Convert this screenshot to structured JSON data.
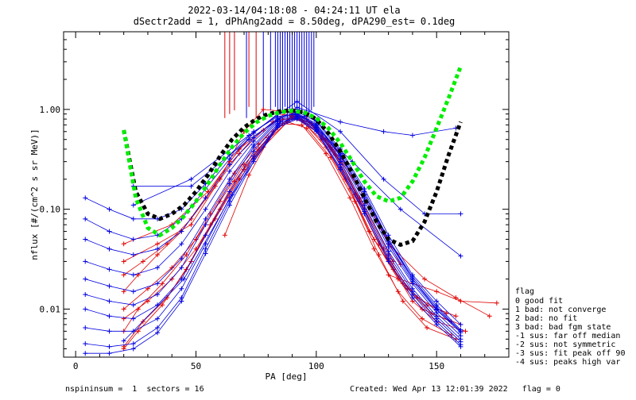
{
  "title_line1": "2022-03-14/04:18:08 - 04:24:11 UT ela",
  "title_line2": "dSectr2add = 1, dPhAng2add = 8.50deg, dPA290_est=   0.1deg",
  "footer_left": "nspininsum =  1  sectors = 16",
  "footer_right": "Created: Wed Apr 13 12:01:39 2022   flag = 0",
  "legend": {
    "title": "flag",
    "items": [
      " 0 good fit",
      " 1 bad: not converge",
      " 2 bad: no fit",
      " 3 bad: bad fgm state",
      "-1 sus: far off median",
      "-2 sus: not symmetric",
      "-3 sus: fit peak off 90",
      "-4 sus: peaks high var"
    ]
  },
  "colors": {
    "red_series": "#e00000",
    "blue_series": "#0000e0",
    "black_fit": "#000000",
    "green_fit": "#00ee00"
  },
  "chart_data": {
    "type": "line",
    "xlabel": "PA [deg]",
    "ylabel": "nflux [#/(cm^2 s sr MeV)]",
    "xlim": [
      -5,
      180
    ],
    "ylim": [
      0.0033,
      6.0
    ],
    "yscale": "log",
    "x_ticks": [
      0,
      50,
      100,
      150
    ],
    "y_ticks": [
      0.01,
      0.1,
      1.0
    ],
    "y_tick_labels": [
      "0.01",
      "0.10",
      "1.00"
    ],
    "grid": false,
    "series": [
      {
        "color": "red",
        "x": [
          20,
          28,
          38,
          48,
          58,
          68,
          78,
          88,
          96,
          106,
          116,
          126,
          136,
          146,
          158
        ],
        "y": [
          0.0042,
          0.0075,
          0.013,
          0.03,
          0.08,
          0.2,
          0.42,
          0.75,
          0.65,
          0.33,
          0.12,
          0.035,
          0.012,
          0.0065,
          0.005
        ]
      },
      {
        "color": "red",
        "x": [
          20,
          26,
          36,
          46,
          56,
          66,
          76,
          86,
          94,
          104,
          114,
          124,
          134,
          144,
          156
        ],
        "y": [
          0.006,
          0.01,
          0.018,
          0.035,
          0.09,
          0.23,
          0.45,
          0.8,
          0.78,
          0.42,
          0.16,
          0.05,
          0.02,
          0.01,
          0.0075
        ]
      },
      {
        "color": "red",
        "x": [
          20,
          30,
          40,
          50,
          60,
          70,
          80,
          90,
          98,
          108,
          118,
          128,
          138,
          148,
          160
        ],
        "y": [
          0.01,
          0.016,
          0.026,
          0.05,
          0.12,
          0.28,
          0.52,
          0.88,
          0.72,
          0.35,
          0.12,
          0.04,
          0.016,
          0.009,
          0.007
        ]
      },
      {
        "color": "red",
        "x": [
          20,
          26,
          34,
          44,
          54,
          64,
          74,
          84,
          92,
          102,
          112,
          122,
          132,
          142,
          154
        ],
        "y": [
          0.015,
          0.022,
          0.035,
          0.06,
          0.13,
          0.3,
          0.58,
          0.9,
          0.85,
          0.5,
          0.2,
          0.06,
          0.025,
          0.013,
          0.009
        ]
      },
      {
        "color": "red",
        "x": [
          20,
          28,
          38,
          48,
          58,
          68,
          78,
          88,
          96,
          106,
          116,
          126,
          136,
          146,
          158
        ],
        "y": [
          0.022,
          0.03,
          0.045,
          0.08,
          0.17,
          0.36,
          0.62,
          0.95,
          0.8,
          0.42,
          0.14,
          0.045,
          0.018,
          0.011,
          0.0085
        ]
      },
      {
        "color": "red",
        "x": [
          20,
          30,
          40,
          50,
          60,
          70,
          80,
          90,
          100,
          110,
          120,
          130,
          140,
          150,
          162
        ],
        "y": [
          0.008,
          0.012,
          0.02,
          0.04,
          0.1,
          0.25,
          0.5,
          0.82,
          0.66,
          0.3,
          0.1,
          0.03,
          0.012,
          0.0075,
          0.006
        ]
      },
      {
        "color": "red",
        "x": [
          20,
          26,
          36,
          46,
          56,
          66,
          76,
          86,
          94,
          104,
          114,
          124,
          134,
          144,
          156
        ],
        "y": [
          0.004,
          0.006,
          0.011,
          0.025,
          0.07,
          0.19,
          0.4,
          0.72,
          0.7,
          0.36,
          0.13,
          0.04,
          0.015,
          0.008,
          0.0055
        ]
      },
      {
        "color": "red",
        "x": [
          20,
          34,
          48,
          60,
          70,
          78,
          88,
          96,
          106,
          118,
          132
        ],
        "y": [
          0.03,
          0.045,
          0.07,
          0.2,
          0.6,
          1.0,
          0.95,
          0.8,
          0.4,
          0.13,
          0.03
        ]
      },
      {
        "color": "red",
        "x": [
          20,
          40,
          55,
          68,
          82,
          92,
          104,
          118,
          135
        ],
        "y": [
          0.045,
          0.07,
          0.15,
          0.4,
          0.75,
          0.85,
          0.5,
          0.16,
          0.028
        ]
      },
      {
        "color": "red",
        "x": [
          62,
          72,
          82,
          90,
          98,
          108,
          118,
          130,
          145,
          158,
          172
        ],
        "y": [
          0.055,
          0.22,
          0.6,
          0.85,
          0.72,
          0.4,
          0.16,
          0.045,
          0.02,
          0.013,
          0.0085
        ]
      },
      {
        "color": "red",
        "x": [
          130,
          140,
          150,
          160,
          175
        ],
        "y": [
          0.022,
          0.018,
          0.015,
          0.012,
          0.0115
        ]
      },
      {
        "color": "blue",
        "x": [
          4,
          14,
          24,
          34,
          44,
          54,
          64,
          74,
          84,
          92,
          100,
          110,
          120,
          130,
          140,
          150,
          160
        ],
        "y": [
          0.13,
          0.1,
          0.08,
          0.08,
          0.1,
          0.18,
          0.35,
          0.6,
          0.85,
          0.9,
          0.7,
          0.35,
          0.14,
          0.05,
          0.02,
          0.01,
          0.006
        ]
      },
      {
        "color": "blue",
        "x": [
          4,
          14,
          24,
          34,
          44,
          54,
          64,
          74,
          84,
          92,
          100,
          110,
          120,
          130,
          140,
          150,
          160
        ],
        "y": [
          0.08,
          0.06,
          0.05,
          0.055,
          0.08,
          0.16,
          0.32,
          0.58,
          0.9,
          1.0,
          0.78,
          0.4,
          0.16,
          0.055,
          0.022,
          0.012,
          0.007
        ]
      },
      {
        "color": "blue",
        "x": [
          4,
          14,
          24,
          34,
          44,
          54,
          64,
          74,
          84,
          92,
          100,
          110,
          120,
          130,
          140,
          150,
          160
        ],
        "y": [
          0.05,
          0.04,
          0.035,
          0.04,
          0.06,
          0.13,
          0.28,
          0.52,
          0.82,
          0.92,
          0.72,
          0.36,
          0.14,
          0.048,
          0.02,
          0.0105,
          0.006
        ]
      },
      {
        "color": "blue",
        "x": [
          4,
          14,
          24,
          34,
          44,
          54,
          64,
          74,
          84,
          92,
          100,
          110,
          120,
          130,
          140,
          150,
          160
        ],
        "y": [
          0.03,
          0.025,
          0.022,
          0.026,
          0.045,
          0.1,
          0.24,
          0.48,
          0.8,
          0.95,
          0.76,
          0.38,
          0.15,
          0.05,
          0.021,
          0.011,
          0.0062
        ]
      },
      {
        "color": "blue",
        "x": [
          4,
          14,
          24,
          34,
          44,
          54,
          64,
          74,
          84,
          92,
          100,
          110,
          120,
          130,
          140,
          150,
          160
        ],
        "y": [
          0.02,
          0.017,
          0.015,
          0.018,
          0.032,
          0.08,
          0.2,
          0.44,
          0.78,
          0.9,
          0.7,
          0.34,
          0.13,
          0.045,
          0.019,
          0.0098,
          0.0058
        ]
      },
      {
        "color": "blue",
        "x": [
          4,
          14,
          24,
          34,
          44,
          54,
          64,
          74,
          84,
          92,
          100,
          110,
          120,
          130,
          140,
          150,
          160
        ],
        "y": [
          0.014,
          0.012,
          0.011,
          0.014,
          0.026,
          0.07,
          0.18,
          0.42,
          0.75,
          0.88,
          0.68,
          0.32,
          0.12,
          0.042,
          0.018,
          0.0092,
          0.0054
        ]
      },
      {
        "color": "blue",
        "x": [
          4,
          14,
          24,
          34,
          44,
          54,
          64,
          74,
          84,
          92,
          100,
          110,
          120,
          130,
          140,
          150,
          160
        ],
        "y": [
          0.01,
          0.0085,
          0.008,
          0.011,
          0.02,
          0.055,
          0.15,
          0.38,
          0.72,
          0.86,
          0.66,
          0.3,
          0.11,
          0.038,
          0.016,
          0.0085,
          0.005
        ]
      },
      {
        "color": "blue",
        "x": [
          4,
          14,
          24,
          34,
          44,
          54,
          64,
          74,
          84,
          92,
          100,
          110,
          120,
          130,
          140,
          150,
          160
        ],
        "y": [
          0.0065,
          0.006,
          0.006,
          0.008,
          0.016,
          0.045,
          0.13,
          0.34,
          0.7,
          0.84,
          0.64,
          0.28,
          0.1,
          0.035,
          0.015,
          0.008,
          0.0047
        ]
      },
      {
        "color": "blue",
        "x": [
          4,
          14,
          24,
          34,
          44,
          54,
          64,
          74,
          84,
          92,
          100,
          110,
          120,
          130,
          140,
          150,
          160
        ],
        "y": [
          0.0045,
          0.0042,
          0.0045,
          0.0065,
          0.013,
          0.04,
          0.12,
          0.32,
          0.68,
          0.82,
          0.62,
          0.26,
          0.095,
          0.032,
          0.014,
          0.0075,
          0.0044
        ]
      },
      {
        "color": "blue",
        "x": [
          4,
          14,
          24,
          34,
          44,
          54,
          64,
          74,
          84,
          92,
          100,
          110,
          120,
          130,
          140,
          150,
          160
        ],
        "y": [
          0.0036,
          0.0036,
          0.004,
          0.0058,
          0.012,
          0.036,
          0.11,
          0.3,
          0.66,
          0.8,
          0.6,
          0.25,
          0.09,
          0.03,
          0.013,
          0.007,
          0.0042
        ]
      },
      {
        "color": "blue",
        "x": [
          24,
          48,
          72,
          92,
          110,
          128,
          140,
          158
        ],
        "y": [
          0.17,
          0.17,
          0.5,
          1.05,
          0.75,
          0.6,
          0.55,
          0.65
        ]
      },
      {
        "color": "blue",
        "x": [
          24,
          48,
          72,
          92,
          110,
          128,
          145,
          160
        ],
        "y": [
          0.11,
          0.2,
          0.55,
          1.2,
          0.6,
          0.2,
          0.09,
          0.09
        ]
      },
      {
        "color": "blue",
        "x": [
          20,
          45,
          65,
          85,
          95,
          115,
          135,
          160
        ],
        "y": [
          0.0048,
          0.02,
          0.14,
          0.75,
          0.85,
          0.3,
          0.1,
          0.034
        ]
      }
    ],
    "fits": [
      {
        "color": "black",
        "style": "dashed-thick",
        "x": [
          20,
          25,
          30,
          35,
          40,
          45,
          50,
          55,
          60,
          65,
          70,
          75,
          80,
          85,
          90,
          95,
          100,
          105,
          110,
          115,
          120,
          125,
          130,
          135,
          140,
          145,
          150,
          155,
          160
        ],
        "y": [
          0.62,
          0.15,
          0.09,
          0.08,
          0.09,
          0.11,
          0.15,
          0.22,
          0.34,
          0.5,
          0.66,
          0.8,
          0.9,
          0.96,
          0.98,
          0.93,
          0.8,
          0.58,
          0.38,
          0.23,
          0.13,
          0.075,
          0.05,
          0.044,
          0.048,
          0.075,
          0.15,
          0.35,
          0.75
        ]
      },
      {
        "color": "green",
        "style": "dashed-thick",
        "x": [
          20,
          25,
          30,
          35,
          40,
          45,
          50,
          55,
          60,
          65,
          70,
          75,
          80,
          85,
          90,
          95,
          100,
          105,
          110,
          115,
          120,
          125,
          130,
          135,
          140,
          145,
          150,
          155,
          160
        ],
        "y": [
          0.62,
          0.13,
          0.065,
          0.055,
          0.065,
          0.085,
          0.12,
          0.18,
          0.28,
          0.42,
          0.58,
          0.74,
          0.86,
          0.94,
          0.97,
          0.93,
          0.82,
          0.65,
          0.46,
          0.3,
          0.19,
          0.135,
          0.12,
          0.13,
          0.19,
          0.33,
          0.65,
          1.3,
          2.7
        ]
      }
    ],
    "spikes": [
      {
        "color": "red",
        "x": [
          62,
          64,
          66,
          72,
          75
        ]
      },
      {
        "color": "blue",
        "x": [
          71,
          78,
          81,
          83,
          84,
          85,
          86,
          87,
          88,
          89,
          90,
          91,
          92,
          93,
          94,
          95,
          96,
          97,
          98,
          99
        ]
      }
    ]
  }
}
